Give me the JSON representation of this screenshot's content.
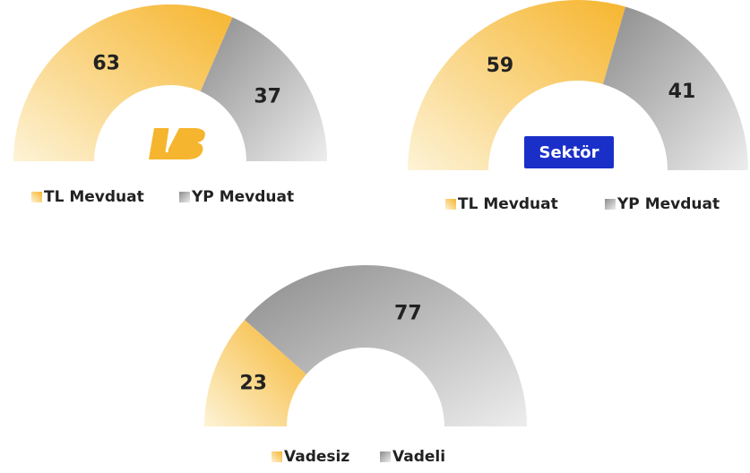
{
  "chart_data": [
    {
      "type": "pie",
      "categories": [
        "TL Mevduat",
        "YP Mevduat"
      ],
      "values": [
        63,
        37
      ],
      "colors": [
        "#f6b52e",
        "#8c8c8c"
      ]
    },
    {
      "type": "pie",
      "label": "Sektör",
      "categories": [
        "TL Mevduat",
        "YP Mevduat"
      ],
      "values": [
        59,
        41
      ],
      "colors": [
        "#f6b52e",
        "#8c8c8c"
      ]
    },
    {
      "type": "pie",
      "categories": [
        "Vadesiz",
        "Vadeli"
      ],
      "values": [
        23,
        77
      ],
      "colors": [
        "#f6b52e",
        "#8c8c8c"
      ]
    }
  ]
}
